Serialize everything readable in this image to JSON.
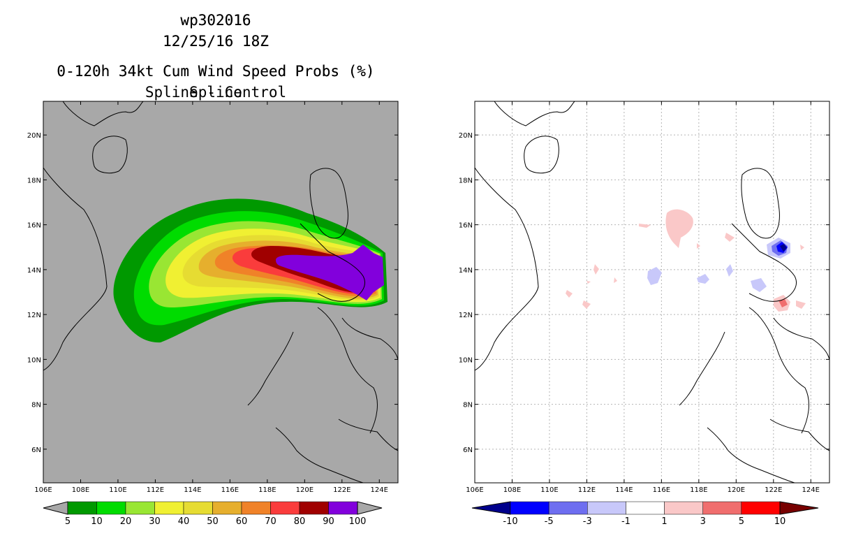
{
  "chart_data": [
    {
      "type": "heatmap",
      "panel": "left",
      "storm_id": "wp302016",
      "date": "12/25/16 18Z",
      "title": "0-120h 34kt Cum Wind Speed Probs (%)",
      "subtitle": "Spline",
      "x_ticks": [
        "106E",
        "108E",
        "110E",
        "112E",
        "114E",
        "116E",
        "118E",
        "120E",
        "122E",
        "124E"
      ],
      "y_ticks": [
        "6N",
        "8N",
        "10N",
        "12N",
        "14N",
        "16N",
        "18N",
        "20N"
      ],
      "xlim": [
        106,
        125
      ],
      "ylim": [
        4.5,
        21.5
      ],
      "colorbar_levels": [
        5,
        10,
        20,
        30,
        40,
        50,
        60,
        70,
        80,
        90,
        100
      ],
      "colorbar_colors": [
        "#009900",
        "#00dc00",
        "#99e633",
        "#f0f032",
        "#e6dc32",
        "#e6af2d",
        "#f08228",
        "#fa3c3c",
        "#a00000",
        "#8200dc"
      ]
    },
    {
      "type": "heatmap",
      "panel": "right",
      "storm_id": "wp302016",
      "date": "12/25/16 18Z",
      "title": "0-120h 34kt Cum Wind Speed Probs (%)",
      "subtitle": "Spline - Control",
      "x_ticks": [
        "106E",
        "108E",
        "110E",
        "112E",
        "114E",
        "116E",
        "118E",
        "120E",
        "122E",
        "124E"
      ],
      "y_ticks": [
        "6N",
        "8N",
        "10N",
        "12N",
        "14N",
        "16N",
        "18N",
        "20N"
      ],
      "xlim": [
        106,
        125
      ],
      "ylim": [
        4.5,
        21.5
      ],
      "colorbar_levels": [
        "-10",
        "-5",
        "-3",
        "-1",
        "1",
        "3",
        "5",
        "10"
      ],
      "colorbar_colors": [
        "#00008c",
        "#0000ff",
        "#6e6ef0",
        "#c8c8fa",
        "#ffffff",
        "#fac8c8",
        "#f06e6e",
        "#ff0000",
        "#780000"
      ]
    }
  ]
}
